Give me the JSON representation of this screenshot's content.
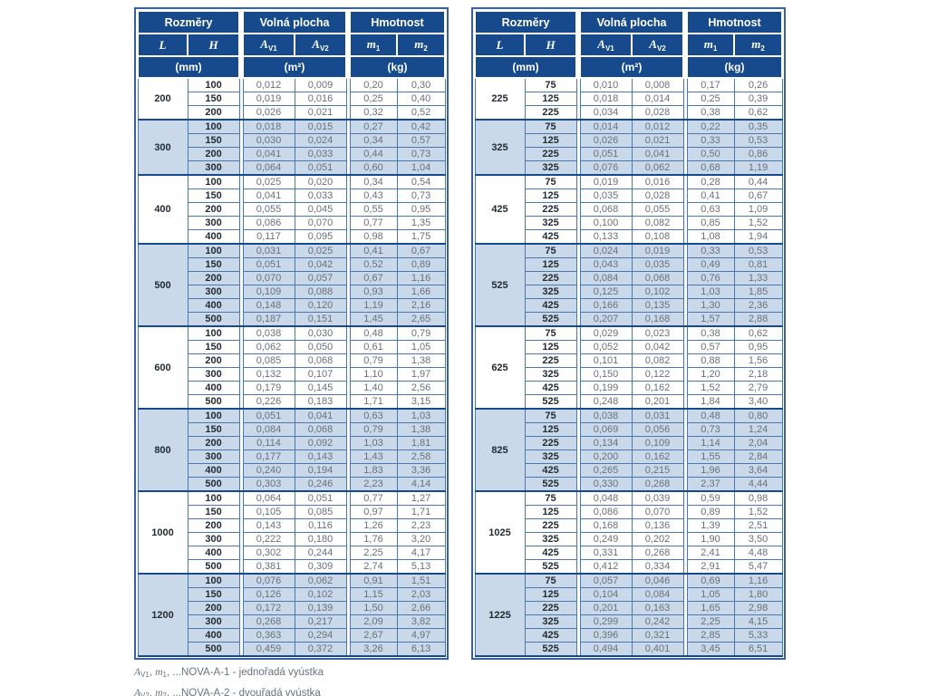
{
  "colors": {
    "header_bg": "#164a8c",
    "stripe_bg": "#c9d9ea",
    "grid_line": "#4a77ad",
    "group_line": "#164a8c",
    "value_text": "#69707a",
    "dim_text": "#232b33",
    "header_text": "#ffffff"
  },
  "header": {
    "group_dims": "Rozměry",
    "group_area": "Volná plocha",
    "group_weight": "Hmotnost",
    "col_l": "L",
    "col_h": "H",
    "col_a_base": "A",
    "col_a1_sub": "V1",
    "col_a2_sub": "V2",
    "col_m_base": "m",
    "col_m1_sub": "1",
    "col_m2_sub": "2",
    "unit_mm": "(mm)",
    "unit_m2": "(m²)",
    "unit_kg": "(kg)"
  },
  "tables": [
    {
      "groups": [
        {
          "L": "200",
          "rows": [
            [
              "100",
              "0,012",
              "0,009",
              "0,20",
              "0,30"
            ],
            [
              "150",
              "0,019",
              "0,016",
              "0,25",
              "0,40"
            ],
            [
              "200",
              "0,026",
              "0,021",
              "0,32",
              "0,52"
            ]
          ]
        },
        {
          "L": "300",
          "rows": [
            [
              "100",
              "0,018",
              "0,015",
              "0,27",
              "0,42"
            ],
            [
              "150",
              "0,030",
              "0,024",
              "0,34",
              "0,57"
            ],
            [
              "200",
              "0,041",
              "0,033",
              "0,44",
              "0,73"
            ],
            [
              "300",
              "0,064",
              "0,051",
              "0,60",
              "1,04"
            ]
          ]
        },
        {
          "L": "400",
          "rows": [
            [
              "100",
              "0,025",
              "0,020",
              "0,34",
              "0,54"
            ],
            [
              "150",
              "0,041",
              "0,033",
              "0,43",
              "0,73"
            ],
            [
              "200",
              "0,055",
              "0,045",
              "0,55",
              "0,95"
            ],
            [
              "300",
              "0,086",
              "0,070",
              "0,77",
              "1,35"
            ],
            [
              "400",
              "0,117",
              "0,095",
              "0,98",
              "1,75"
            ]
          ]
        },
        {
          "L": "500",
          "rows": [
            [
              "100",
              "0,031",
              "0,025",
              "0,41",
              "0,67"
            ],
            [
              "150",
              "0,051",
              "0,042",
              "0,52",
              "0,89"
            ],
            [
              "200",
              "0,070",
              "0,057",
              "0,67",
              "1,16"
            ],
            [
              "300",
              "0,109",
              "0,088",
              "0,93",
              "1,66"
            ],
            [
              "400",
              "0,148",
              "0,120",
              "1,19",
              "2,16"
            ],
            [
              "500",
              "0,187",
              "0,151",
              "1,45",
              "2,65"
            ]
          ]
        },
        {
          "L": "600",
          "rows": [
            [
              "100",
              "0,038",
              "0,030",
              "0,48",
              "0,79"
            ],
            [
              "150",
              "0,062",
              "0,050",
              "0,61",
              "1,05"
            ],
            [
              "200",
              "0,085",
              "0,068",
              "0,79",
              "1,38"
            ],
            [
              "300",
              "0,132",
              "0,107",
              "1,10",
              "1,97"
            ],
            [
              "400",
              "0,179",
              "0,145",
              "1,40",
              "2,56"
            ],
            [
              "500",
              "0,226",
              "0,183",
              "1,71",
              "3,15"
            ]
          ]
        },
        {
          "L": "800",
          "rows": [
            [
              "100",
              "0,051",
              "0,041",
              "0,63",
              "1,03"
            ],
            [
              "150",
              "0,084",
              "0,068",
              "0,79",
              "1,38"
            ],
            [
              "200",
              "0,114",
              "0,092",
              "1,03",
              "1,81"
            ],
            [
              "300",
              "0,177",
              "0,143",
              "1,43",
              "2,58"
            ],
            [
              "400",
              "0,240",
              "0,194",
              "1,83",
              "3,36"
            ],
            [
              "500",
              "0,303",
              "0,246",
              "2,23",
              "4,14"
            ]
          ]
        },
        {
          "L": "1000",
          "rows": [
            [
              "100",
              "0,064",
              "0,051",
              "0,77",
              "1,27"
            ],
            [
              "150",
              "0,105",
              "0,085",
              "0,97",
              "1,71"
            ],
            [
              "200",
              "0,143",
              "0,116",
              "1,26",
              "2,23"
            ],
            [
              "300",
              "0,222",
              "0,180",
              "1,76",
              "3,20"
            ],
            [
              "400",
              "0,302",
              "0,244",
              "2,25",
              "4,17"
            ],
            [
              "500",
              "0,381",
              "0,309",
              "2,74",
              "5,13"
            ]
          ]
        },
        {
          "L": "1200",
          "rows": [
            [
              "100",
              "0,076",
              "0,062",
              "0,91",
              "1,51"
            ],
            [
              "150",
              "0,126",
              "0,102",
              "1,15",
              "2,03"
            ],
            [
              "200",
              "0,172",
              "0,139",
              "1,50",
              "2,66"
            ],
            [
              "300",
              "0,268",
              "0,217",
              "2,09",
              "3,82"
            ],
            [
              "400",
              "0,363",
              "0,294",
              "2,67",
              "4,97"
            ],
            [
              "500",
              "0,459",
              "0,372",
              "3,26",
              "6,13"
            ]
          ]
        }
      ]
    },
    {
      "groups": [
        {
          "L": "225",
          "rows": [
            [
              "75",
              "0,010",
              "0,008",
              "0,17",
              "0,26"
            ],
            [
              "125",
              "0,018",
              "0,014",
              "0,25",
              "0,39"
            ],
            [
              "225",
              "0,034",
              "0,028",
              "0,38",
              "0,62"
            ]
          ]
        },
        {
          "L": "325",
          "rows": [
            [
              "75",
              "0,014",
              "0,012",
              "0,22",
              "0,35"
            ],
            [
              "125",
              "0,026",
              "0,021",
              "0,33",
              "0,53"
            ],
            [
              "225",
              "0,051",
              "0,041",
              "0,50",
              "0,86"
            ],
            [
              "325",
              "0,076",
              "0,062",
              "0,68",
              "1,19"
            ]
          ]
        },
        {
          "L": "425",
          "rows": [
            [
              "75",
              "0,019",
              "0,016",
              "0,28",
              "0,44"
            ],
            [
              "125",
              "0,035",
              "0,028",
              "0,41",
              "0,67"
            ],
            [
              "225",
              "0,068",
              "0,055",
              "0,63",
              "1,09"
            ],
            [
              "325",
              "0,100",
              "0,082",
              "0,85",
              "1,52"
            ],
            [
              "425",
              "0,133",
              "0,108",
              "1,08",
              "1,94"
            ]
          ]
        },
        {
          "L": "525",
          "rows": [
            [
              "75",
              "0,024",
              "0,019",
              "0,33",
              "0,53"
            ],
            [
              "125",
              "0,043",
              "0,035",
              "0,49",
              "0,81"
            ],
            [
              "225",
              "0,084",
              "0,068",
              "0,76",
              "1,33"
            ],
            [
              "325",
              "0,125",
              "0,102",
              "1,03",
              "1,85"
            ],
            [
              "425",
              "0,166",
              "0,135",
              "1,30",
              "2,36"
            ],
            [
              "525",
              "0,207",
              "0,168",
              "1,57",
              "2,88"
            ]
          ]
        },
        {
          "L": "625",
          "rows": [
            [
              "75",
              "0,029",
              "0,023",
              "0,38",
              "0,62"
            ],
            [
              "125",
              "0,052",
              "0,042",
              "0,57",
              "0,95"
            ],
            [
              "225",
              "0,101",
              "0,082",
              "0,88",
              "1,56"
            ],
            [
              "325",
              "0,150",
              "0,122",
              "1,20",
              "2,18"
            ],
            [
              "425",
              "0,199",
              "0,162",
              "1,52",
              "2,79"
            ],
            [
              "525",
              "0,248",
              "0,201",
              "1,84",
              "3,40"
            ]
          ]
        },
        {
          "L": "825",
          "rows": [
            [
              "75",
              "0,038",
              "0,031",
              "0,48",
              "0,80"
            ],
            [
              "125",
              "0,069",
              "0,056",
              "0,73",
              "1,24"
            ],
            [
              "225",
              "0,134",
              "0,109",
              "1,14",
              "2,04"
            ],
            [
              "325",
              "0,200",
              "0,162",
              "1,55",
              "2,84"
            ],
            [
              "425",
              "0,265",
              "0,215",
              "1,96",
              "3,64"
            ],
            [
              "525",
              "0,330",
              "0,268",
              "2,37",
              "4,44"
            ]
          ]
        },
        {
          "L": "1025",
          "rows": [
            [
              "75",
              "0,048",
              "0,039",
              "0,59",
              "0,98"
            ],
            [
              "125",
              "0,086",
              "0,070",
              "0,89",
              "1,52"
            ],
            [
              "225",
              "0,168",
              "0,136",
              "1,39",
              "2,51"
            ],
            [
              "325",
              "0,249",
              "0,202",
              "1,90",
              "3,50"
            ],
            [
              "425",
              "0,331",
              "0,268",
              "2,41",
              "4,48"
            ],
            [
              "525",
              "0,412",
              "0,334",
              "2,91",
              "5,47"
            ]
          ]
        },
        {
          "L": "1225",
          "rows": [
            [
              "75",
              "0,057",
              "0,046",
              "0,69",
              "1,16"
            ],
            [
              "125",
              "0,104",
              "0,084",
              "1,05",
              "1,80"
            ],
            [
              "225",
              "0,201",
              "0,163",
              "1,65",
              "2,98"
            ],
            [
              "325",
              "0,299",
              "0,242",
              "2,25",
              "4,15"
            ],
            [
              "425",
              "0,396",
              "0,321",
              "2,85",
              "5,33"
            ],
            [
              "525",
              "0,494",
              "0,401",
              "3,45",
              "6,51"
            ]
          ]
        }
      ]
    }
  ],
  "footnotes": [
    {
      "a": "A",
      "a_sub": "V1",
      "m": "m",
      "m_sub": "1",
      "sep": ", ",
      "text": "...NOVA-A-1 - jednořadá vyústka"
    },
    {
      "a": "A",
      "a_sub": "V2",
      "m": "m",
      "m_sub": "2",
      "sep": ", ",
      "text": "...NOVA-A-2 - dvouřadá vyústka"
    }
  ]
}
